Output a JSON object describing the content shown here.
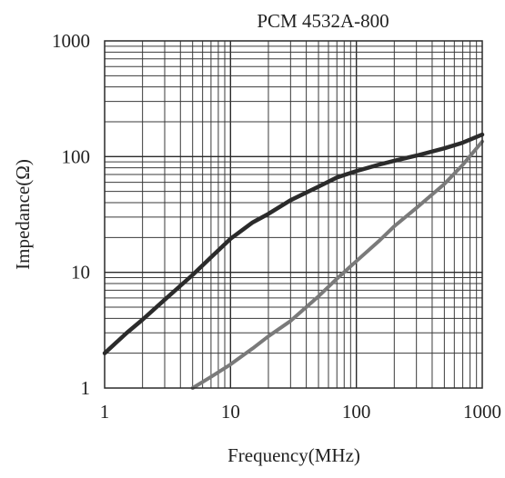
{
  "chart_data": {
    "type": "line",
    "title": "PCM 4532A-800",
    "xlabel": "Frequency(MHz)",
    "ylabel": "Impedance(Ω)",
    "xscale": "log",
    "yscale": "log",
    "xlim": [
      1,
      1000
    ],
    "ylim": [
      1,
      1000
    ],
    "grid": true,
    "legend": "none",
    "xticks": [
      {
        "value": 1,
        "label": "1"
      },
      {
        "value": 10,
        "label": "10"
      },
      {
        "value": 100,
        "label": "100"
      },
      {
        "value": 1000,
        "label": "1000"
      }
    ],
    "yticks": [
      {
        "value": 1,
        "label": "1"
      },
      {
        "value": 10,
        "label": "10"
      },
      {
        "value": 100,
        "label": "100"
      },
      {
        "value": 1000,
        "label": "1000"
      }
    ],
    "series": [
      {
        "color": "#2b2b2b",
        "x": [
          1,
          1.5,
          2,
          3,
          5,
          7,
          10,
          15,
          20,
          30,
          50,
          70,
          100,
          150,
          200,
          300,
          500,
          700,
          1000
        ],
        "y": [
          2.0,
          3.0,
          3.9,
          5.8,
          9.5,
          13.5,
          19.5,
          27,
          32,
          42,
          55,
          66,
          75,
          85,
          92,
          102,
          118,
          132,
          155
        ]
      },
      {
        "color": "#7a7a7a",
        "x": [
          5,
          7,
          10,
          15,
          20,
          30,
          50,
          70,
          100,
          150,
          200,
          300,
          500,
          700,
          1000
        ],
        "y": [
          1.0,
          1.25,
          1.6,
          2.2,
          2.8,
          3.8,
          6.2,
          8.8,
          12.5,
          18.5,
          25,
          36,
          58,
          85,
          135
        ]
      }
    ]
  }
}
